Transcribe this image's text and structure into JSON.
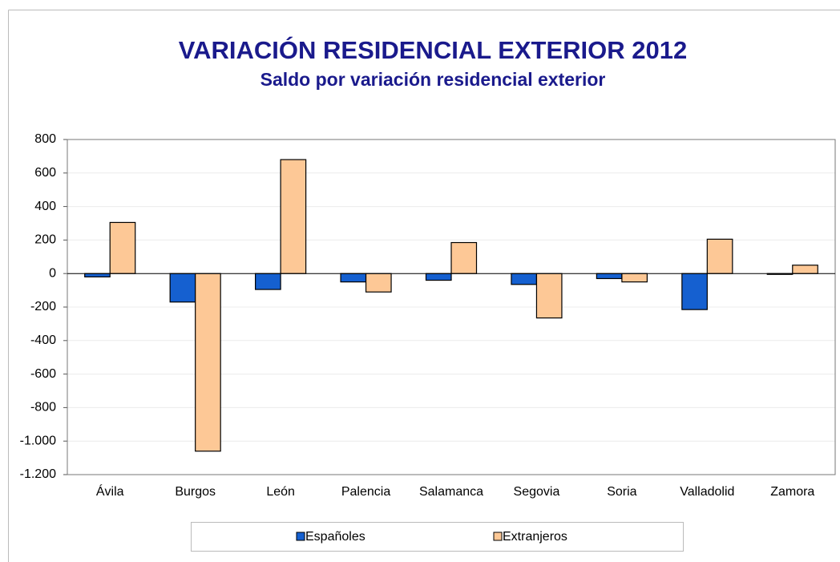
{
  "chart_data": {
    "type": "bar",
    "title": "VARIACIÓN RESIDENCIAL EXTERIOR 2012",
    "subtitle": "Saldo por variación residencial exterior",
    "categories": [
      "Ávila",
      "Burgos",
      "León",
      "Palencia",
      "Salamanca",
      "Segovia",
      "Soria",
      "Valladolid",
      "Zamora"
    ],
    "series": [
      {
        "name": "Españoles",
        "color": "#1560d0",
        "values": [
          -20,
          -170,
          -95,
          -50,
          -40,
          -65,
          -30,
          -215,
          -5
        ]
      },
      {
        "name": "Extranjeros",
        "color": "#fdc896",
        "values": [
          305,
          -1060,
          680,
          -110,
          185,
          -265,
          -50,
          205,
          50
        ]
      }
    ],
    "ylim": [
      -1200,
      800
    ],
    "yticks": [
      {
        "value": -1200,
        "label": "-1.200"
      },
      {
        "value": -1000,
        "label": "-1.000"
      },
      -800,
      -600,
      -400,
      -200,
      0,
      200,
      400,
      600,
      800
    ],
    "grid": true,
    "legend": "bottom"
  }
}
